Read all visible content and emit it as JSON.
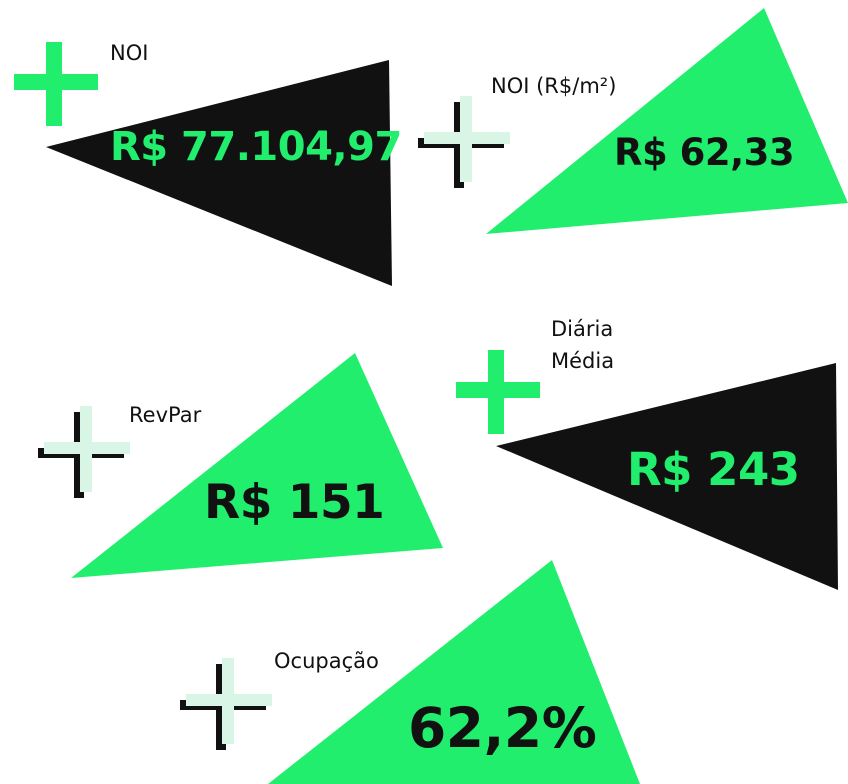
{
  "colors": {
    "accent": "#22ee6e",
    "dark": "#111111",
    "mint": "#d8f5e6"
  },
  "metrics": {
    "noi": {
      "label": "NOI",
      "value": "R$ 77.104,97"
    },
    "noi_m2": {
      "label": "NOI (R$/m²)",
      "value": "R$ 62,33"
    },
    "diaria": {
      "label_line1": "Diária",
      "label_line2": "Média",
      "value": "R$ 243"
    },
    "revpar": {
      "label": "RevPar",
      "value": "R$ 151"
    },
    "ocupacao": {
      "label": "Ocupação",
      "value": "62,2%"
    }
  }
}
